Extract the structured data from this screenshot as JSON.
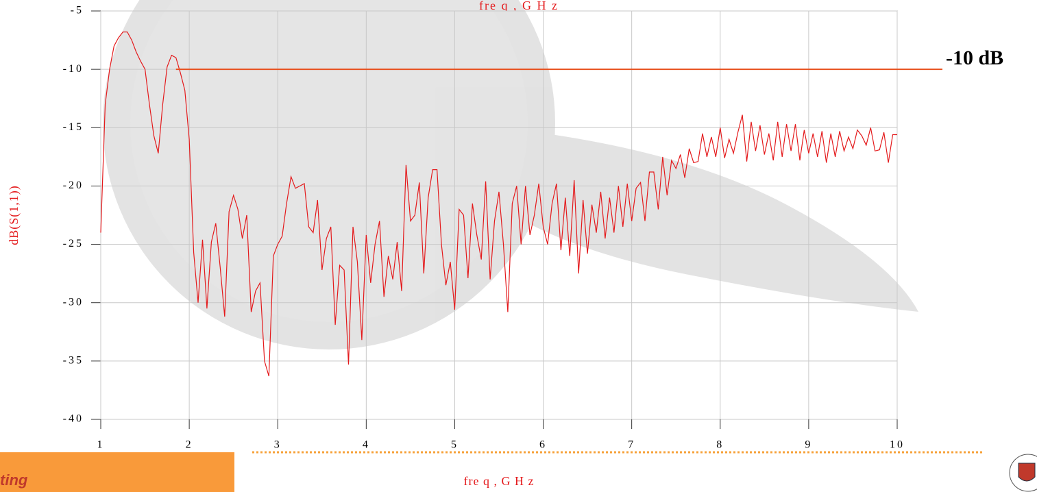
{
  "chart_data": {
    "type": "line",
    "top_label": "fre q ,  G H z",
    "xlabel": "fre q , G H z",
    "ylabel": "dB(S(1,1))",
    "x": [
      1.0,
      1.05,
      1.1,
      1.15,
      1.2,
      1.25,
      1.3,
      1.35,
      1.4,
      1.45,
      1.5,
      1.55,
      1.6,
      1.65,
      1.7,
      1.75,
      1.8,
      1.85,
      1.9,
      1.95,
      2.0,
      2.05,
      2.1,
      2.15,
      2.2,
      2.25,
      2.3,
      2.35,
      2.4,
      2.45,
      2.5,
      2.55,
      2.6,
      2.65,
      2.7,
      2.75,
      2.8,
      2.85,
      2.9,
      2.95,
      3.0,
      3.05,
      3.1,
      3.15,
      3.2,
      3.25,
      3.3,
      3.35,
      3.4,
      3.45,
      3.5,
      3.55,
      3.6,
      3.65,
      3.7,
      3.75,
      3.8,
      3.85,
      3.9,
      3.95,
      4.0,
      4.05,
      4.1,
      4.15,
      4.2,
      4.25,
      4.3,
      4.35,
      4.4,
      4.45,
      4.5,
      4.55,
      4.6,
      4.65,
      4.7,
      4.75,
      4.8,
      4.85,
      4.9,
      4.95,
      5.0,
      5.05,
      5.1,
      5.15,
      5.2,
      5.25,
      5.3,
      5.35,
      5.4,
      5.45,
      5.5,
      5.55,
      5.6,
      5.65,
      5.7,
      5.75,
      5.8,
      5.85,
      5.9,
      5.95,
      6.0,
      6.05,
      6.1,
      6.15,
      6.2,
      6.25,
      6.3,
      6.35,
      6.4,
      6.45,
      6.5,
      6.55,
      6.6,
      6.65,
      6.7,
      6.75,
      6.8,
      6.85,
      6.9,
      6.95,
      7.0,
      7.05,
      7.1,
      7.15,
      7.2,
      7.25,
      7.3,
      7.35,
      7.4,
      7.45,
      7.5,
      7.55,
      7.6,
      7.65,
      7.7,
      7.75,
      7.8,
      7.85,
      7.9,
      7.95,
      8.0,
      8.05,
      8.1,
      8.15,
      8.2,
      8.25,
      8.3,
      8.35,
      8.4,
      8.45,
      8.5,
      8.55,
      8.6,
      8.65,
      8.7,
      8.75,
      8.8,
      8.85,
      8.9,
      8.95,
      9.0,
      9.05,
      9.1,
      9.15,
      9.2,
      9.25,
      9.3,
      9.35,
      9.4,
      9.45,
      9.5,
      9.55,
      9.6,
      9.65,
      9.7,
      9.75,
      9.8,
      9.85,
      9.9,
      9.95,
      10.0
    ],
    "series": [
      {
        "color": "#e41a1c",
        "values": [
          -24,
          -13,
          -10,
          -8,
          -7.3,
          -6.8,
          -6.8,
          -7.5,
          -8.5,
          -9.3,
          -10,
          -13,
          -15.7,
          -17.2,
          -13,
          -9.8,
          -8.8,
          -9,
          -10.3,
          -11.8,
          -16,
          -25.7,
          -30,
          -24.6,
          -30.5,
          -24.8,
          -23.2,
          -27,
          -31.2,
          -22.2,
          -20.8,
          -22,
          -24.5,
          -22.5,
          -30.8,
          -29,
          -28.3,
          -35,
          -36.3,
          -26,
          -25,
          -24.3,
          -21.5,
          -19.2,
          -20.2,
          -20,
          -19.8,
          -23.5,
          -24,
          -21.2,
          -27.2,
          -24.5,
          -23.5,
          -31.9,
          -26.8,
          -27.2,
          -35.3,
          -23.5,
          -26.5,
          -33.2,
          -24.2,
          -28.3,
          -25,
          -23,
          -29.5,
          -26,
          -28,
          -24.8,
          -29,
          -18.2,
          -23,
          -22.5,
          -19.7,
          -27.5,
          -21,
          -18.6,
          -18.6,
          -25,
          -28.5,
          -26.5,
          -30.6,
          -22,
          -22.5,
          -27.9,
          -21.5,
          -24.2,
          -26.3,
          -19.6,
          -28,
          -23,
          -20.5,
          -25,
          -30.8,
          -21.5,
          -20,
          -25,
          -20,
          -24.2,
          -22.5,
          -19.8,
          -23.5,
          -25,
          -21.5,
          -19.8,
          -25.5,
          -21,
          -26,
          -19.5,
          -27.5,
          -21.2,
          -25.8,
          -21.6,
          -24,
          -20.5,
          -24.5,
          -21,
          -24,
          -20,
          -23.5,
          -19.8,
          -23,
          -20.2,
          -19.7,
          -23,
          -18.8,
          -18.8,
          -22,
          -17.5,
          -20.8,
          -17.8,
          -18.5,
          -17.3,
          -19.3,
          -16.8,
          -18,
          -17.9,
          -15.5,
          -17.5,
          -15.8,
          -17.5,
          -15,
          -17.6,
          -16,
          -17.2,
          -15.4,
          -13.9,
          -17.9,
          -14.5,
          -17,
          -14.8,
          -17.3,
          -15.5,
          -17.8,
          -14.5,
          -17.5,
          -14.7,
          -17,
          -14.7,
          -17.8,
          -15.2,
          -17.2,
          -15.5,
          -17.5,
          -15.3,
          -18,
          -15.5,
          -17.5,
          -15.3,
          -17,
          -15.8,
          -16.8,
          -15.2,
          -15.7,
          -16.5,
          -15,
          -17,
          -16.9,
          -15.4,
          -18,
          -15.6,
          -15.6
        ]
      }
    ],
    "xlim": [
      1,
      10
    ],
    "xticks": [
      1,
      2,
      3,
      4,
      5,
      6,
      7,
      8,
      9,
      10
    ],
    "ylim": [
      -40,
      -5
    ],
    "yticks": [
      -5,
      -10,
      -15,
      -20,
      -25,
      -30,
      -35,
      -40
    ],
    "grid": true,
    "reference_line": {
      "value": -10,
      "x_start": 1.85,
      "label": "-10 dB",
      "color": "#e8501e"
    }
  },
  "footer": {
    "text": "ting"
  }
}
